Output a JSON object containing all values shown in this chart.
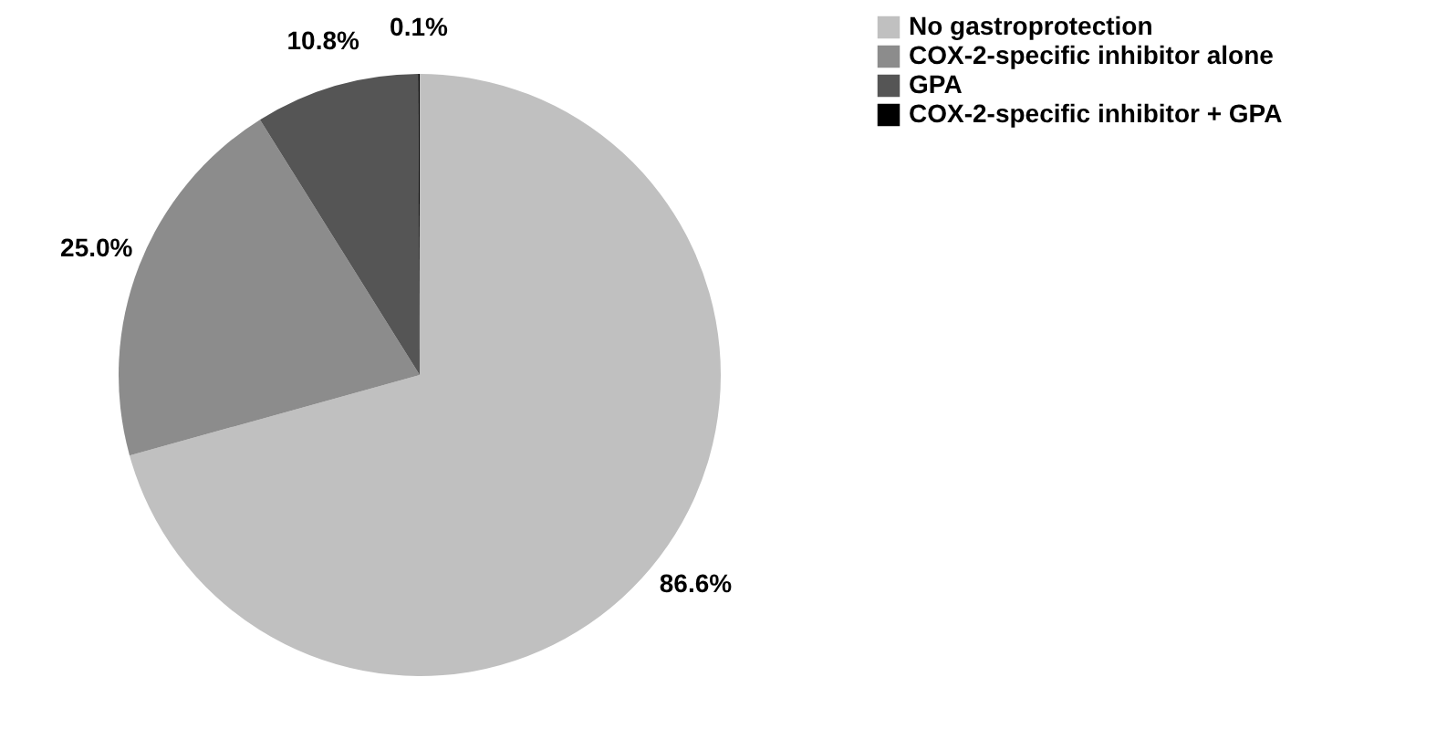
{
  "chart_data": {
    "type": "pie",
    "categories": [
      "No gastroprotection",
      "COX-2-specific inhibitor alone",
      "GPA",
      "COX-2-specific inhibitor + GPA"
    ],
    "values": [
      86.6,
      25.0,
      10.8,
      0.1
    ],
    "colors": [
      "#c0c0c0",
      "#8c8c8c",
      "#555555",
      "#000000"
    ],
    "value_labels": [
      "86.6%",
      "25.0%",
      "10.8%",
      "0.1%"
    ],
    "legend": "right"
  }
}
